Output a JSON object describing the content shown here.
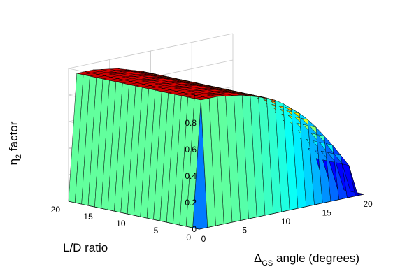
{
  "chart_data": {
    "type": "surface3d",
    "title": "",
    "xlabel": {
      "main": "Δ",
      "sub": "GS",
      "rest": " angle (degrees)"
    },
    "ylabel": "L/D ratio",
    "zlabel": {
      "main": "η",
      "sub": "2",
      "rest": " factor"
    },
    "xlim": [
      0,
      20
    ],
    "ylim": [
      0,
      20
    ],
    "zlim": [
      0,
      1
    ],
    "xticks": [
      "0",
      "5",
      "10",
      "15",
      "20"
    ],
    "yticks": [
      "0",
      "5",
      "10",
      "15",
      "20"
    ],
    "zticks": [
      "0",
      "0.2",
      "0.4",
      "0.6",
      "0.8",
      "1"
    ],
    "grid": true,
    "colormap": "jet",
    "colors": {
      "edge": "#000000",
      "grid": "#c8c8c8",
      "box": "#000000"
    },
    "x_grid": [
      0,
      1,
      2,
      3,
      4,
      5,
      6,
      7,
      8,
      9,
      10,
      11,
      12,
      13,
      14,
      15,
      16,
      17,
      18,
      19,
      20
    ],
    "y_grid": [
      0,
      1,
      2,
      3,
      4,
      5,
      6,
      7,
      8,
      9,
      10,
      11,
      12,
      13,
      14,
      15,
      16,
      17,
      18,
      19,
      20
    ],
    "z_values_by_x": [
      [
        0,
        0,
        0,
        0,
        0,
        0,
        0,
        0,
        0,
        0,
        0,
        0,
        0,
        0,
        0,
        0,
        0,
        0,
        0,
        0,
        0
      ],
      [
        0,
        0.95,
        0.95,
        0.95,
        0.95,
        0.95,
        0.95,
        0.95,
        0.95,
        0.95,
        0.95,
        0.95,
        0.95,
        0.95,
        0.95,
        0.95,
        0.95,
        0.95,
        0.95,
        0.95,
        0.95
      ],
      [
        0,
        0.95,
        0.95,
        0.95,
        0.95,
        0.95,
        0.95,
        0.95,
        0.95,
        0.95,
        0.95,
        0.95,
        0.95,
        0.95,
        0.95,
        0.95,
        0.95,
        0.95,
        0.95,
        0.95,
        0.95
      ],
      [
        0,
        0.95,
        0.95,
        0.95,
        0.95,
        0.95,
        0.95,
        0.95,
        0.95,
        0.95,
        0.95,
        0.95,
        0.95,
        0.95,
        0.95,
        0.95,
        0.95,
        0.95,
        0.95,
        0.95,
        0.95
      ],
      [
        0,
        0.94,
        0.94,
        0.94,
        0.94,
        0.94,
        0.94,
        0.94,
        0.94,
        0.94,
        0.94,
        0.94,
        0.94,
        0.94,
        0.94,
        0.94,
        0.94,
        0.94,
        0.94,
        0.94,
        0.94
      ],
      [
        0,
        0.93,
        0.93,
        0.93,
        0.93,
        0.93,
        0.93,
        0.93,
        0.93,
        0.93,
        0.93,
        0.93,
        0.93,
        0.93,
        0.93,
        0.93,
        0.93,
        0.93,
        0.93,
        0.93,
        0.93
      ],
      [
        0,
        0.92,
        0.92,
        0.92,
        0.92,
        0.92,
        0.92,
        0.92,
        0.92,
        0.92,
        0.92,
        0.92,
        0.92,
        0.92,
        0.92,
        0.92,
        0.92,
        0.92,
        0.92,
        0.92,
        0.92
      ],
      [
        0,
        0.9,
        0.9,
        0.9,
        0.9,
        0.9,
        0.9,
        0.9,
        0.9,
        0.9,
        0.9,
        0.9,
        0.9,
        0.9,
        0.9,
        0.9,
        0.9,
        0.9,
        0.9,
        0.9,
        0.9
      ],
      [
        0,
        0.88,
        0.88,
        0.88,
        0.88,
        0.88,
        0.88,
        0.88,
        0.88,
        0.88,
        0.88,
        0.88,
        0.88,
        0.88,
        0.88,
        0.88,
        0.88,
        0.88,
        0.88,
        0.88,
        0.88
      ],
      [
        0,
        0.86,
        0.86,
        0.86,
        0.86,
        0.86,
        0.86,
        0.86,
        0.86,
        0.86,
        0.86,
        0.86,
        0.86,
        0.86,
        0.86,
        0.86,
        0.86,
        0.86,
        0.86,
        0.86,
        0.86
      ],
      [
        0,
        0.83,
        0.83,
        0.83,
        0.83,
        0.83,
        0.83,
        0.83,
        0.83,
        0.83,
        0.83,
        0.83,
        0.83,
        0.83,
        0.83,
        0.83,
        0.83,
        0.83,
        0.83,
        0.83,
        0.83
      ],
      [
        0,
        0.79,
        0.79,
        0.79,
        0.79,
        0.79,
        0.79,
        0.79,
        0.79,
        0.79,
        0.79,
        0.79,
        0.79,
        0.79,
        0.79,
        0.79,
        0.79,
        0.79,
        0.79,
        0.79,
        0.79
      ],
      [
        0,
        0.74,
        0.74,
        0.74,
        0.74,
        0.74,
        0.74,
        0.74,
        0.74,
        0.74,
        0.74,
        0.74,
        0.74,
        0.74,
        0.74,
        0.74,
        0.74,
        0.74,
        0.74,
        0.74,
        0.74
      ],
      [
        0,
        0.69,
        0.69,
        0.69,
        0.69,
        0.69,
        0.69,
        0.69,
        0.69,
        0.69,
        0.69,
        0.69,
        0.69,
        0.69,
        0.69,
        0.69,
        0.69,
        0.69,
        0.69,
        0.69,
        0.69
      ],
      [
        0,
        0.63,
        0.63,
        0.63,
        0.63,
        0.63,
        0.63,
        0.63,
        0.63,
        0.63,
        0.63,
        0.63,
        0.63,
        0.63,
        0.63,
        0.63,
        0.63,
        0.63,
        0.63,
        0.63,
        0.63
      ],
      [
        0,
        0.56,
        0.56,
        0.56,
        0.56,
        0.56,
        0.56,
        0.56,
        0.56,
        0.56,
        0.56,
        0.56,
        0.56,
        0.56,
        0.56,
        0.56,
        0.56,
        0.56,
        0.56,
        0.56,
        0.56
      ],
      [
        0,
        0.48,
        0.48,
        0.48,
        0.48,
        0.48,
        0.48,
        0.48,
        0.48,
        0.48,
        0.48,
        0.48,
        0.48,
        0.48,
        0.48,
        0.48,
        0.48,
        0.48,
        0.48,
        0.48,
        0.48
      ],
      [
        0,
        0.4,
        0.4,
        0.4,
        0.4,
        0.4,
        0.4,
        0.4,
        0.4,
        0.4,
        0.4,
        0.4,
        0.4,
        0.4,
        0.4,
        0.4,
        0.4,
        0.4,
        0.4,
        0.4,
        0.4
      ],
      [
        0,
        0.31,
        0.31,
        0.31,
        0.31,
        0.31,
        0.31,
        0.31,
        0.31,
        0.31,
        0.31,
        0.31,
        0.31,
        0.31,
        0.31,
        0.31,
        0.31,
        0.31,
        0.31,
        0.31,
        0.31
      ],
      [
        0,
        0.22,
        0.22,
        0.22,
        0.22,
        0.22,
        0.22,
        0.22,
        0.22,
        0.22,
        0.22,
        0.22,
        0.22,
        0.22,
        0.22,
        0.22,
        0.22,
        0.22,
        0.22,
        0.22,
        0.22
      ],
      [
        0,
        0,
        0,
        0,
        0,
        0,
        0,
        0,
        0,
        0,
        0,
        0,
        0,
        0,
        0,
        0,
        0,
        0,
        0,
        0,
        0
      ]
    ]
  }
}
